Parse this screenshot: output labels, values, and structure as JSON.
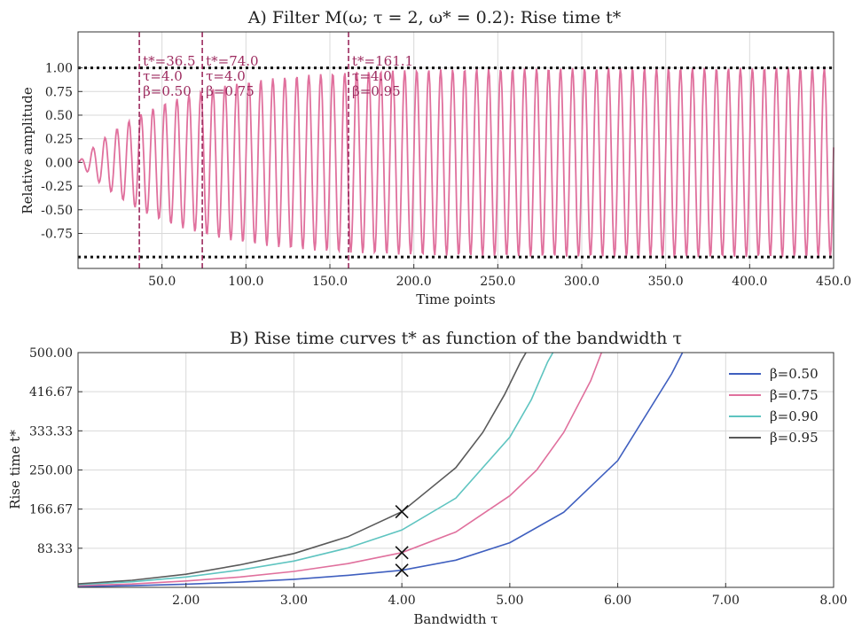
{
  "chart_data": [
    {
      "type": "line",
      "title": "A) Filter M(ω; τ = 2, ω* = 0.2): Rise time t*",
      "xlabel": "Time points",
      "ylabel": "Relative amplitude",
      "xlim": [
        0,
        450
      ],
      "ylim": [
        -1.12,
        1.38
      ],
      "xticks": [
        "50.0",
        "100.0",
        "150.0",
        "200.0",
        "250.0",
        "300.0",
        "350.0",
        "400.0",
        "450.0"
      ],
      "yticks": [
        "-0.75",
        "-0.50",
        "-0.25",
        "0.00",
        "0.25",
        "0.50",
        "0.75",
        "1.00"
      ],
      "series_color": "#e0709d",
      "grid": true,
      "signal": {
        "omega": 0.88,
        "tau": 4.0,
        "rise_time_beta_050": 36.5,
        "amplitude_levels": [
          1.0,
          -1.0
        ]
      },
      "hlines": [
        1.0,
        -1.0
      ],
      "vlines": [
        {
          "x": 36.5,
          "label_t": "t*=36.5",
          "label_tau": "τ=4.0",
          "label_beta": "β=0.50"
        },
        {
          "x": 74.0,
          "label_t": "t*=74.0",
          "label_tau": "τ=4.0",
          "label_beta": "β=0.75"
        },
        {
          "x": 161.1,
          "label_t": "t*=161.1",
          "label_tau": "τ=4.0",
          "label_beta": "β=0.95"
        }
      ]
    },
    {
      "type": "line",
      "title": "B) Rise time curves t* as function of the bandwidth τ",
      "xlabel": "Bandwidth τ",
      "ylabel": "Rise time t*",
      "xlim": [
        1.0,
        8.0
      ],
      "ylim": [
        0,
        500
      ],
      "xticks": [
        "2.00",
        "3.00",
        "4.00",
        "5.00",
        "6.00",
        "7.00",
        "8.00"
      ],
      "yticks": [
        "83.33",
        "166.67",
        "250.00",
        "333.33",
        "416.67",
        "500.00"
      ],
      "grid": true,
      "legend_position": "top-right",
      "series": [
        {
          "name": "β=0.50",
          "color": "#3f5fbf",
          "x": [
            1.0,
            1.5,
            2.0,
            2.5,
            3.0,
            3.5,
            4.0,
            4.5,
            5.0,
            5.5,
            6.0,
            6.5,
            6.6
          ],
          "values": [
            1.8,
            3.6,
            6.8,
            11.2,
            17.1,
            25.6,
            36.5,
            58,
            95,
            160,
            270,
            455,
            500
          ]
        },
        {
          "name": "β=0.75",
          "color": "#e0709d",
          "x": [
            1.0,
            1.5,
            2.0,
            2.5,
            3.0,
            3.5,
            4.0,
            4.5,
            5.0,
            5.25,
            5.5,
            5.75,
            5.85
          ],
          "values": [
            3.5,
            7.2,
            13.6,
            22,
            34,
            50.5,
            74,
            118,
            195,
            250,
            330,
            440,
            500
          ]
        },
        {
          "name": "β=0.90",
          "color": "#5ec4c0",
          "x": [
            1.0,
            1.5,
            2.0,
            2.5,
            3.0,
            3.5,
            4.0,
            4.5,
            4.75,
            5.0,
            5.2,
            5.35,
            5.4
          ],
          "values": [
            5.8,
            11.8,
            22,
            37,
            56,
            84,
            122,
            190,
            255,
            320,
            400,
            480,
            500
          ]
        },
        {
          "name": "β=0.95",
          "color": "#5a5a5a",
          "x": [
            1.0,
            1.5,
            2.0,
            2.5,
            3.0,
            3.5,
            4.0,
            4.5,
            4.75,
            4.95,
            5.1,
            5.15
          ],
          "values": [
            7.5,
            15,
            28,
            48,
            72,
            108,
            161.1,
            255,
            330,
            410,
            480,
            500
          ]
        }
      ],
      "markers": [
        {
          "x": 4.0,
          "y": 36.5
        },
        {
          "x": 4.0,
          "y": 74.0
        },
        {
          "x": 4.0,
          "y": 161.1
        }
      ]
    }
  ]
}
